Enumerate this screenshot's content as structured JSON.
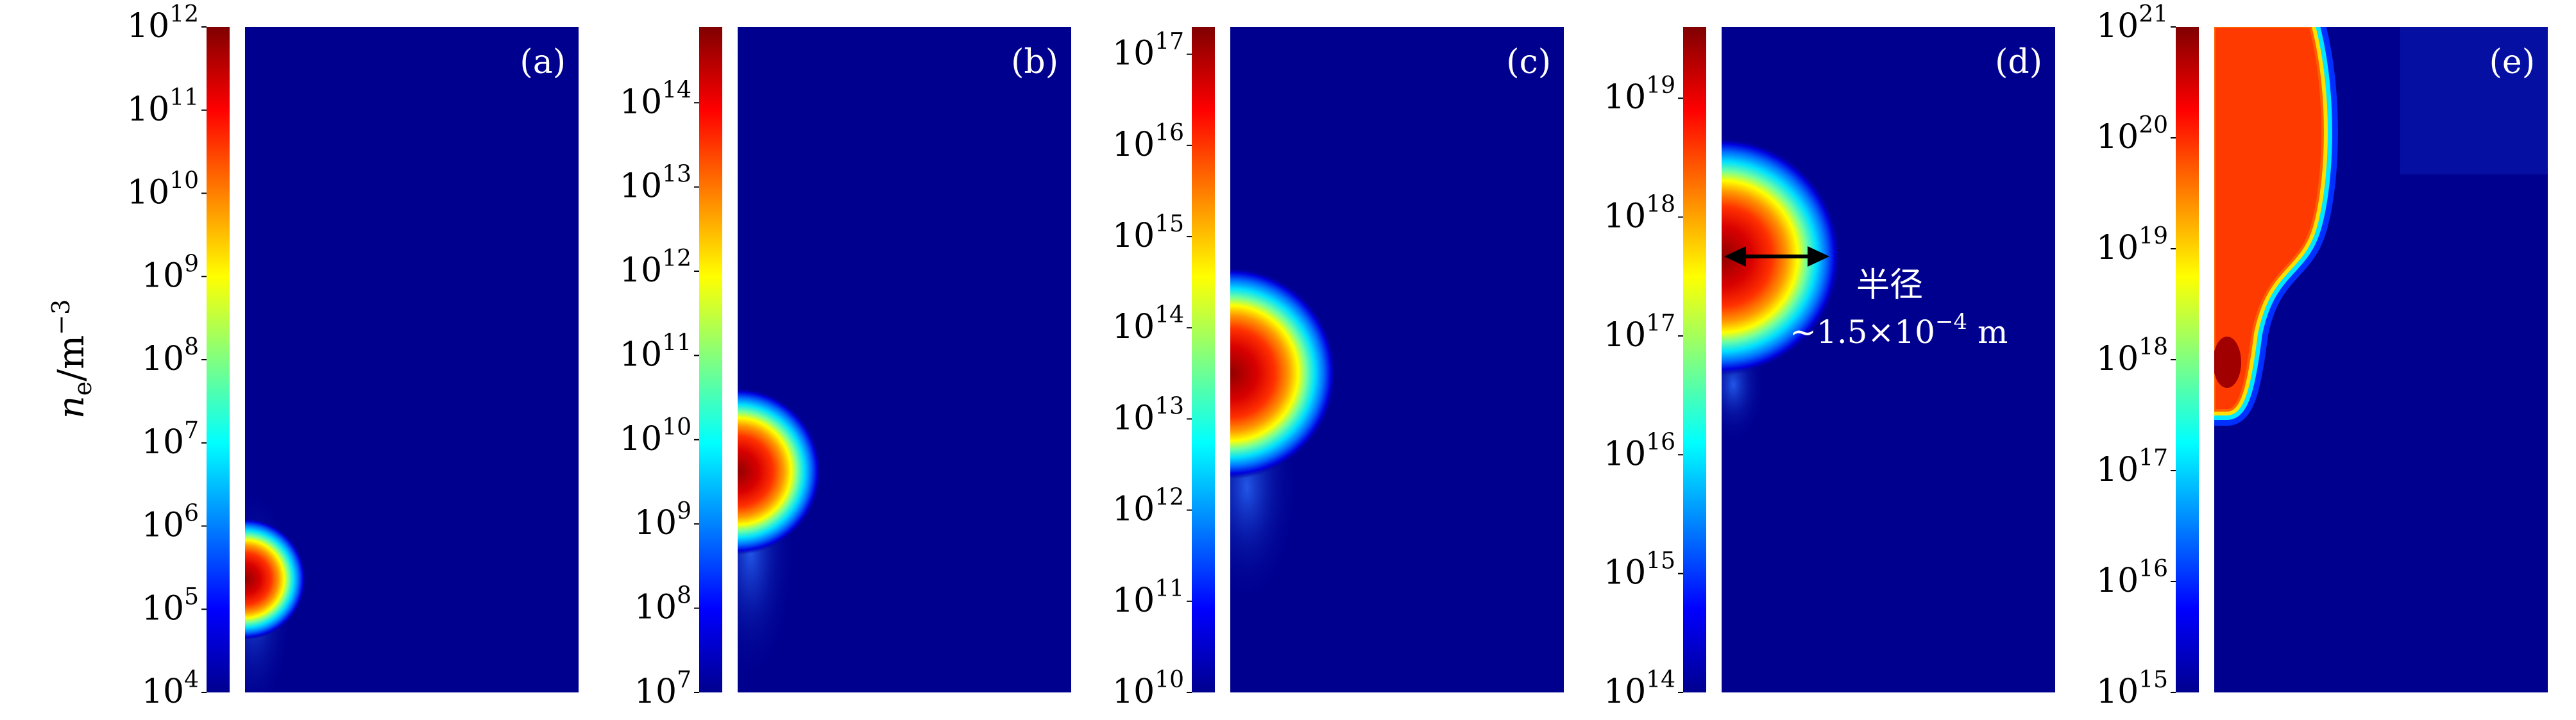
{
  "figure": {
    "ylabel_main": "n",
    "ylabel_sub": "e",
    "ylabel_unit": "/m",
    "ylabel_exp": "−3"
  },
  "colormap": [
    "#00008f",
    "#0000ff",
    "#0080ff",
    "#00ffff",
    "#80ff80",
    "#ffff00",
    "#ff8000",
    "#ff0000",
    "#800000"
  ],
  "background_color": "#00008f",
  "annotation": {
    "panel": "d",
    "label": "半径",
    "value_prefix": "~1.5×10",
    "value_exp": "−4",
    "value_unit": " m"
  },
  "chart_data": [
    {
      "type": "heatmap",
      "panel_label": "(a)",
      "scale": "log",
      "colorbar": {
        "min_exp": 4,
        "max_exp": 12
      },
      "tick_labels": [
        {
          "base": "10",
          "exp": "4"
        },
        {
          "base": "10",
          "exp": "5"
        },
        {
          "base": "10",
          "exp": "6"
        },
        {
          "base": "10",
          "exp": "7"
        },
        {
          "base": "10",
          "exp": "8"
        },
        {
          "base": "10",
          "exp": "9"
        },
        {
          "base": "10",
          "exp": "10"
        },
        {
          "base": "10",
          "exp": "11"
        },
        {
          "base": "10",
          "exp": "12"
        }
      ]
    },
    {
      "type": "heatmap",
      "panel_label": "(b)",
      "scale": "log",
      "colorbar": {
        "min_exp": 7,
        "max_exp": 14.9
      },
      "tick_labels": [
        {
          "base": "10",
          "exp": "7"
        },
        {
          "base": "10",
          "exp": "8"
        },
        {
          "base": "10",
          "exp": "9"
        },
        {
          "base": "10",
          "exp": "10"
        },
        {
          "base": "10",
          "exp": "11"
        },
        {
          "base": "10",
          "exp": "12"
        },
        {
          "base": "10",
          "exp": "13"
        },
        {
          "base": "10",
          "exp": "14"
        }
      ]
    },
    {
      "type": "heatmap",
      "panel_label": "(c)",
      "scale": "log",
      "colorbar": {
        "min_exp": 10,
        "max_exp": 17.3
      },
      "tick_labels": [
        {
          "base": "10",
          "exp": "10"
        },
        {
          "base": "10",
          "exp": "11"
        },
        {
          "base": "10",
          "exp": "12"
        },
        {
          "base": "10",
          "exp": "13"
        },
        {
          "base": "10",
          "exp": "14"
        },
        {
          "base": "10",
          "exp": "15"
        },
        {
          "base": "10",
          "exp": "16"
        },
        {
          "base": "10",
          "exp": "17"
        }
      ]
    },
    {
      "type": "heatmap",
      "panel_label": "(d)",
      "scale": "log",
      "colorbar": {
        "min_exp": 14,
        "max_exp": 19.6
      },
      "tick_labels": [
        {
          "base": "10",
          "exp": "14"
        },
        {
          "base": "10",
          "exp": "15"
        },
        {
          "base": "10",
          "exp": "16"
        },
        {
          "base": "10",
          "exp": "17"
        },
        {
          "base": "10",
          "exp": "18"
        },
        {
          "base": "10",
          "exp": "19"
        }
      ]
    },
    {
      "type": "heatmap",
      "panel_label": "(e)",
      "scale": "log",
      "colorbar": {
        "min_exp": 15,
        "max_exp": 21
      },
      "tick_labels": [
        {
          "base": "10",
          "exp": "15"
        },
        {
          "base": "10",
          "exp": "16"
        },
        {
          "base": "10",
          "exp": "17"
        },
        {
          "base": "10",
          "exp": "18"
        },
        {
          "base": "10",
          "exp": "19"
        },
        {
          "base": "10",
          "exp": "20"
        },
        {
          "base": "10",
          "exp": "21"
        }
      ]
    }
  ]
}
